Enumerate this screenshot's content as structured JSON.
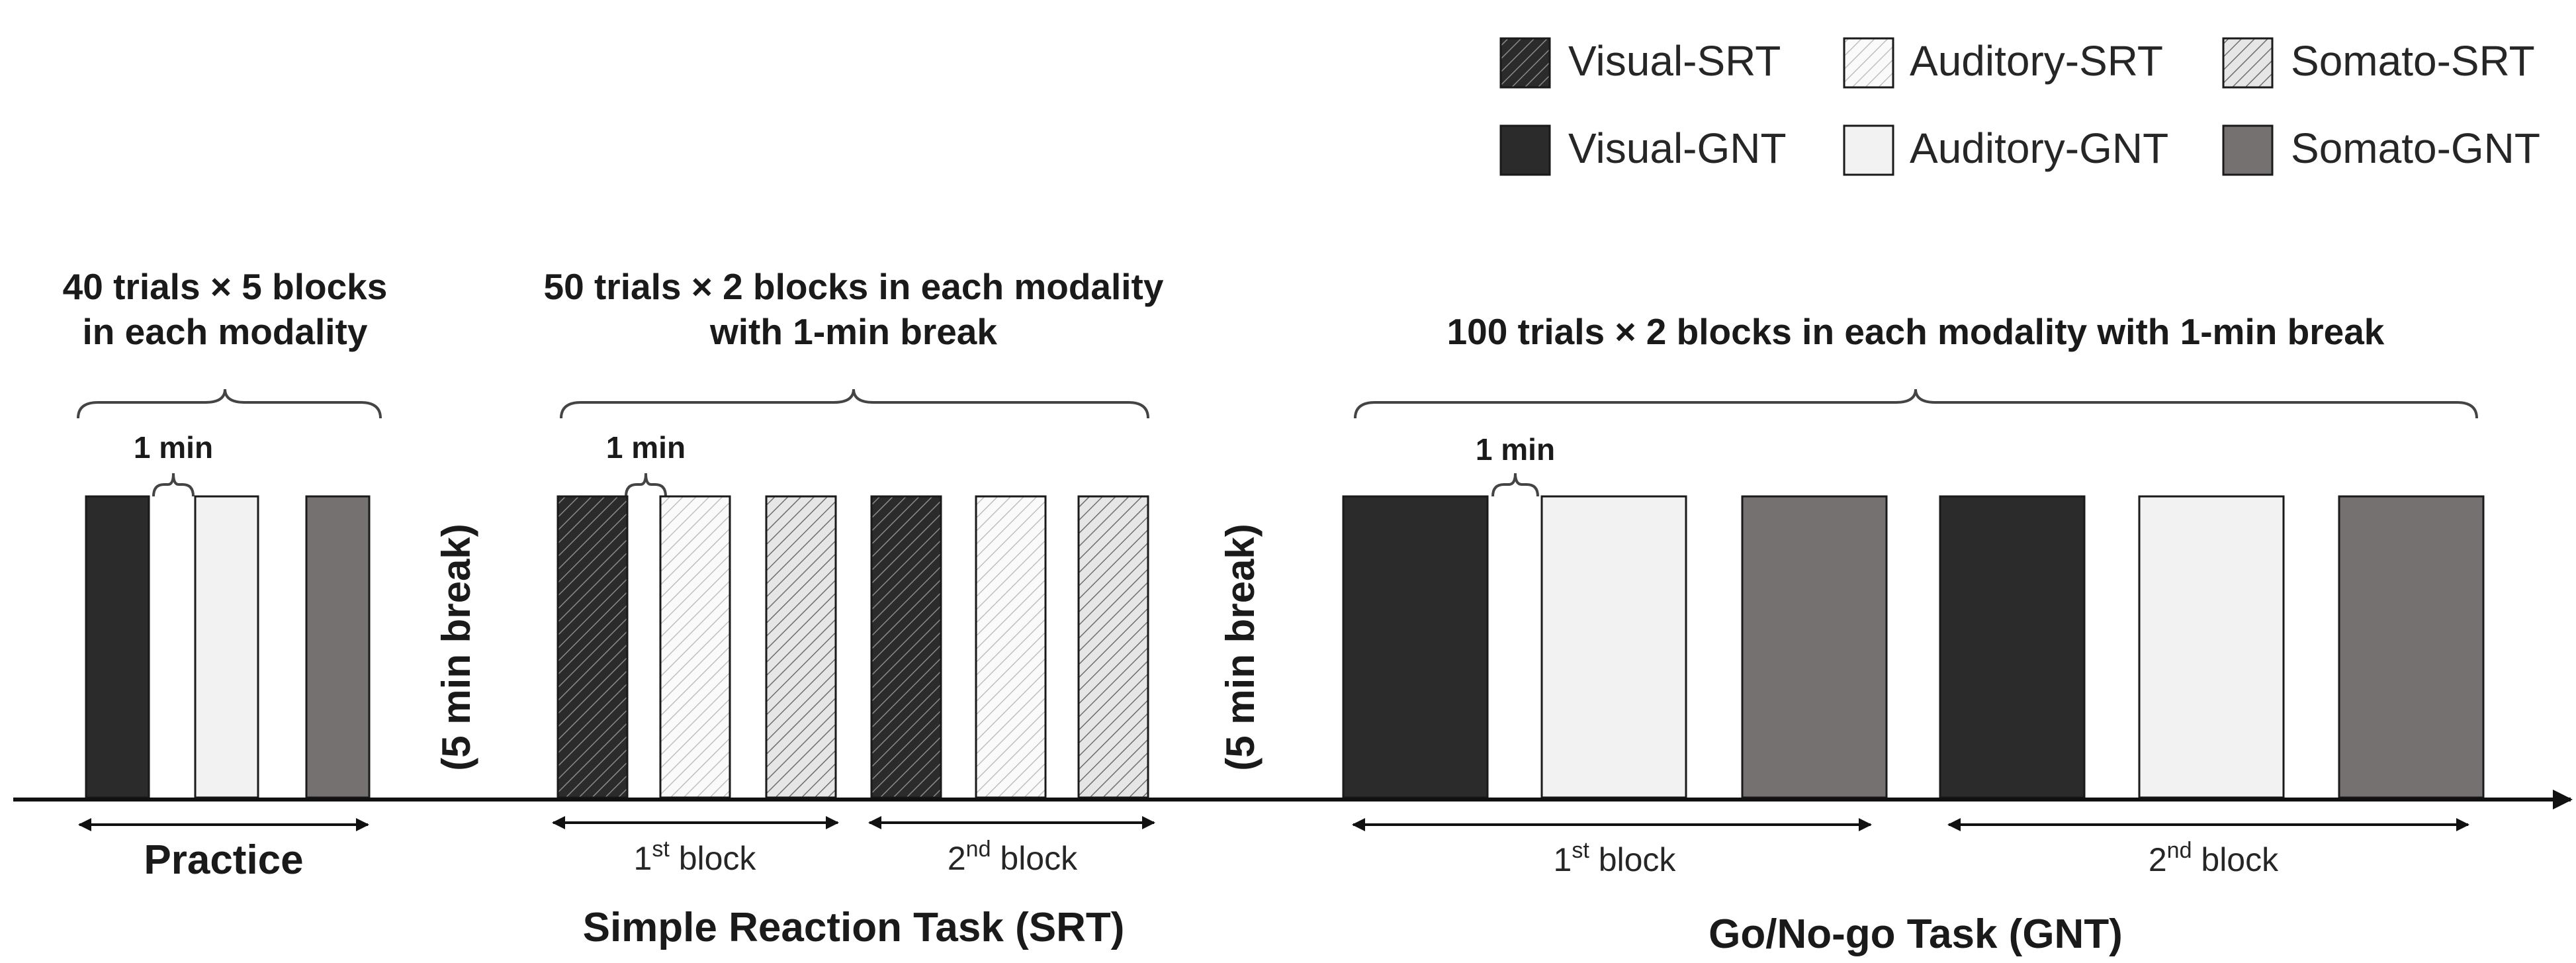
{
  "legend": {
    "items": [
      {
        "label": "Visual-SRT",
        "color": "#2b2b2b",
        "pattern": "hatch"
      },
      {
        "label": "Auditory-SRT",
        "color": "#f2f2f2",
        "pattern": "hatch"
      },
      {
        "label": "Somato-SRT",
        "color": "#d9d9d9",
        "pattern": "hatch"
      },
      {
        "label": "Visual-GNT",
        "color": "#2b2b2b",
        "pattern": "solid"
      },
      {
        "label": "Auditory-GNT",
        "color": "#f2f2f2",
        "pattern": "solid"
      },
      {
        "label": "Somato-GNT",
        "color": "#767171",
        "pattern": "solid"
      }
    ]
  },
  "practice": {
    "title_line1": "40 trials × 5 blocks",
    "title_line2": "in each modality",
    "gap_label": "1 min",
    "span_label": "Practice"
  },
  "srt": {
    "title_line1": "50 trials × 2 blocks in each modality",
    "title_line2": "with 1-min break",
    "gap_label": "1 min",
    "block1_num": "1",
    "block1_sup": "st",
    "block1_word": " block",
    "block2_num": "2",
    "block2_sup": "nd",
    "block2_word": " block",
    "task_label": "Simple Reaction Task (SRT)"
  },
  "gnt": {
    "title": "100 trials × 2 blocks in each modality with 1-min break",
    "gap_label": "1 min",
    "block1_num": "1",
    "block1_sup": "st",
    "block1_word": " block",
    "block2_num": "2",
    "block2_sup": "nd",
    "block2_word": " block",
    "task_label": "Go/No-go Task (GNT)"
  },
  "breaks": {
    "first": "(5 min break)",
    "second": "(5 min break)"
  }
}
